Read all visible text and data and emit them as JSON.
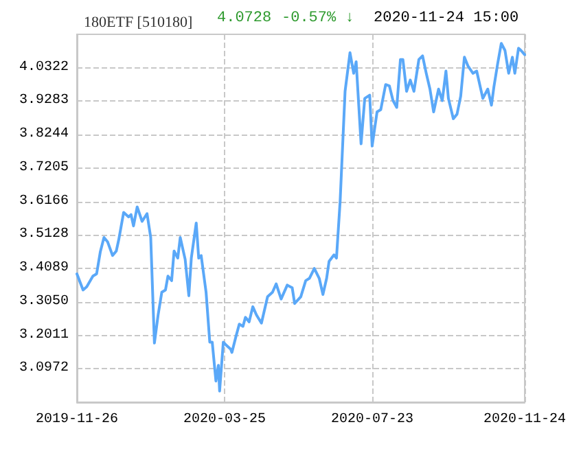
{
  "chart_data": {
    "type": "line",
    "title": "180ETF [510180]",
    "annotations": [
      "4.0728",
      "-0.57% ↓",
      "2020-11-24 15:00"
    ],
    "x": [
      "2019-11-26",
      "2019-12-01",
      "2019-12-04",
      "2019-12-09",
      "2019-12-12",
      "2019-12-15",
      "2019-12-18",
      "2019-12-21",
      "2019-12-25",
      "2019-12-28",
      "2019-12-30",
      "2020-01-03",
      "2020-01-07",
      "2020-01-09",
      "2020-01-11",
      "2020-01-14",
      "2020-01-18",
      "2020-01-22",
      "2020-01-25",
      "2020-01-28",
      "2020-01-31",
      "2020-02-03",
      "2020-02-06",
      "2020-02-08",
      "2020-02-11",
      "2020-02-13",
      "2020-02-16",
      "2020-02-18",
      "2020-02-22",
      "2020-02-25",
      "2020-02-27",
      "2020-03-02",
      "2020-03-04",
      "2020-03-06",
      "2020-03-10",
      "2020-03-13",
      "2020-03-15",
      "2020-03-18",
      "2020-03-20",
      "2020-03-21",
      "2020-03-24",
      "2020-03-26",
      "2020-03-30",
      "2020-03-31",
      "2020-04-03",
      "2020-04-06",
      "2020-04-09",
      "2020-04-11",
      "2020-04-14",
      "2020-04-17",
      "2020-04-20",
      "2020-04-24",
      "2020-04-29",
      "2020-05-03",
      "2020-05-06",
      "2020-05-10",
      "2020-05-15",
      "2020-05-19",
      "2020-05-21",
      "2020-05-26",
      "2020-05-30",
      "2020-06-02",
      "2020-06-06",
      "2020-06-10",
      "2020-06-13",
      "2020-06-16",
      "2020-06-18",
      "2020-06-22",
      "2020-06-24",
      "2020-06-27",
      "2020-07-01",
      "2020-07-05",
      "2020-07-08",
      "2020-07-10",
      "2020-07-14",
      "2020-07-17",
      "2020-07-21",
      "2020-07-23",
      "2020-07-27",
      "2020-07-30",
      "2020-08-03",
      "2020-08-06",
      "2020-08-09",
      "2020-08-12",
      "2020-08-15",
      "2020-08-17",
      "2020-08-20",
      "2020-08-23",
      "2020-08-26",
      "2020-08-30",
      "2020-09-02",
      "2020-09-05",
      "2020-09-08",
      "2020-09-11",
      "2020-09-15",
      "2020-09-18",
      "2020-09-21",
      "2020-09-23",
      "2020-09-27",
      "2020-09-30",
      "2020-10-03",
      "2020-10-06",
      "2020-10-09",
      "2020-10-13",
      "2020-10-16",
      "2020-10-21",
      "2020-10-25",
      "2020-10-28",
      "2020-10-30",
      "2020-11-02",
      "2020-11-05",
      "2020-11-08",
      "2020-11-11",
      "2020-11-14",
      "2020-11-16",
      "2020-11-19",
      "2020-11-21",
      "2020-11-24"
    ],
    "series": [
      {
        "color": "#5aa8f8",
        "values": [
          3.392,
          3.342,
          3.352,
          3.385,
          3.392,
          3.46,
          3.505,
          3.491,
          3.449,
          3.463,
          3.498,
          3.583,
          3.569,
          3.576,
          3.541,
          3.6,
          3.555,
          3.579,
          3.505,
          3.177,
          3.264,
          3.335,
          3.342,
          3.385,
          3.371,
          3.463,
          3.441,
          3.505,
          3.437,
          3.324,
          3.441,
          3.55,
          3.441,
          3.449,
          3.335,
          3.18,
          3.18,
          3.059,
          3.108,
          3.028,
          3.18,
          3.172,
          3.158,
          3.148,
          3.193,
          3.236,
          3.229,
          3.257,
          3.243,
          3.29,
          3.264,
          3.239,
          3.321,
          3.335,
          3.361,
          3.314,
          3.357,
          3.349,
          3.3,
          3.321,
          3.371,
          3.378,
          3.409,
          3.378,
          3.328,
          3.378,
          3.431,
          3.451,
          3.441,
          3.619,
          3.959,
          4.079,
          4.015,
          4.051,
          3.796,
          3.937,
          3.947,
          3.789,
          3.895,
          3.902,
          3.98,
          3.976,
          3.93,
          3.909,
          4.058,
          4.058,
          3.959,
          3.994,
          3.959,
          4.058,
          4.069,
          4.015,
          3.966,
          3.895,
          3.966,
          3.93,
          4.022,
          3.937,
          3.874,
          3.888,
          3.944,
          4.065,
          4.037,
          4.015,
          4.022,
          3.937,
          3.966,
          3.916,
          3.973,
          4.044,
          4.108,
          4.086,
          4.015,
          4.065,
          4.015,
          4.093,
          4.086,
          4.073
        ]
      }
    ],
    "xlim": [
      "2019-11-26",
      "2020-11-24"
    ],
    "xticks": [
      "2019-11-26",
      "2020-03-25",
      "2020-07-23",
      "2020-11-24"
    ],
    "ylim": [
      2.9933,
      4.1361
    ],
    "yticks": [
      3.0972,
      3.2011,
      {
        "value": 3.305,
        "label": "3.3050"
      },
      3.4089,
      3.5128,
      3.6166,
      3.7205,
      3.8244,
      3.9283,
      4.0322
    ],
    "grid": true,
    "marker": "none",
    "line_style": "solid"
  }
}
